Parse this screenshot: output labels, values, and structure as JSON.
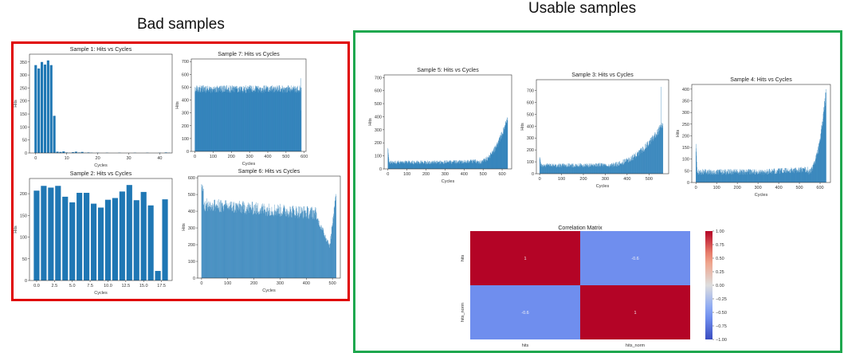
{
  "sections": {
    "bad": {
      "title": "Bad samples",
      "color": "#e00000"
    },
    "usable": {
      "title": "Usable samples",
      "color": "#1fa84f"
    }
  },
  "chart_data": [
    {
      "id": "sample1",
      "type": "bar",
      "title": "Sample 1: Hits vs Cycles",
      "xlabel": "Cycles",
      "ylabel": "Hits",
      "xlim": [
        -2,
        44
      ],
      "ylim": [
        0,
        380
      ],
      "xticks": [
        0,
        10,
        20,
        30,
        40
      ],
      "yticks": [
        0,
        50,
        100,
        150,
        200,
        250,
        300,
        350
      ],
      "bar_width": 0.8,
      "x": [
        0,
        1,
        2,
        3,
        4,
        5,
        6,
        7,
        8,
        9,
        10,
        11,
        12,
        13,
        14,
        15,
        16,
        17,
        18,
        19,
        20,
        21,
        22,
        23,
        24,
        25,
        26,
        27,
        28,
        29,
        30,
        31,
        32,
        33,
        34,
        35,
        36,
        37,
        38,
        39,
        40,
        41,
        42,
        43
      ],
      "values": [
        338,
        325,
        350,
        340,
        356,
        338,
        143,
        5,
        4,
        6,
        2,
        1,
        3,
        5,
        2,
        4,
        1,
        2,
        1,
        0,
        1,
        0,
        0,
        1,
        0,
        0,
        0,
        1,
        0,
        0,
        0,
        0,
        1,
        0,
        0,
        0,
        1,
        0,
        0,
        0,
        1,
        0,
        2,
        1
      ]
    },
    {
      "id": "sample7",
      "type": "bar",
      "title": "Sample 7: Hits vs Cycles",
      "xlabel": "Cycles",
      "ylabel": "Hits",
      "xlim": [
        -20,
        610
      ],
      "ylim": [
        0,
        720
      ],
      "xticks": [
        0,
        100,
        200,
        300,
        400,
        500,
        600
      ],
      "yticks": [
        0,
        100,
        200,
        300,
        400,
        500,
        600,
        700
      ],
      "generator": {
        "kind": "flat",
        "n": 585,
        "base": 485,
        "jitter": 60,
        "spikes": [
          [
            580,
            570
          ],
          [
            583,
            320
          ],
          [
            586,
            60
          ]
        ]
      }
    },
    {
      "id": "sample2",
      "type": "bar",
      "title": "Sample 2: Hits vs Cycles",
      "xlabel": "Cycles",
      "ylabel": "Hits",
      "xlim": [
        -1,
        19
      ],
      "ylim": [
        0,
        235
      ],
      "xticks": [
        0.0,
        2.5,
        5.0,
        7.5,
        10.0,
        12.5,
        15.0,
        17.5
      ],
      "yticks": [
        0,
        50,
        100,
        150,
        200
      ],
      "bar_width": 0.8,
      "x": [
        0,
        1,
        2,
        3,
        4,
        5,
        6,
        7,
        8,
        9,
        10,
        11,
        12,
        13,
        14,
        15,
        16,
        17,
        18
      ],
      "values": [
        207,
        218,
        214,
        218,
        193,
        180,
        202,
        202,
        177,
        168,
        186,
        190,
        205,
        220,
        185,
        204,
        173,
        22,
        187
      ]
    },
    {
      "id": "sample6",
      "type": "bar",
      "title": "Sample 6: Hits vs Cycles",
      "xlabel": "Cycles",
      "ylabel": "Hits",
      "xlim": [
        -15,
        530
      ],
      "ylim": [
        0,
        610
      ],
      "xticks": [
        0,
        100,
        200,
        300,
        400,
        500
      ],
      "yticks": [
        0,
        100,
        200,
        300,
        400,
        500,
        600
      ],
      "generator": {
        "kind": "decay_dip",
        "n": 515
      }
    },
    {
      "id": "sample5",
      "type": "bar",
      "title": "Sample 5: Hits vs Cycles",
      "xlabel": "Cycles",
      "ylabel": "Hits",
      "xlim": [
        -20,
        650
      ],
      "ylim": [
        0,
        720
      ],
      "xticks": [
        0,
        100,
        200,
        300,
        400,
        500,
        600
      ],
      "yticks": [
        0,
        100,
        200,
        300,
        400,
        500,
        600,
        700
      ],
      "generator": {
        "kind": "rise",
        "n": 630,
        "base": 50,
        "jitter": 30,
        "start": 470,
        "peak": 400,
        "first": 160
      }
    },
    {
      "id": "sample3",
      "type": "bar",
      "title": "Sample 3: Hits vs Cycles",
      "xlabel": "Cycles",
      "ylabel": "Hits",
      "xlim": [
        -15,
        590
      ],
      "ylim": [
        0,
        790
      ],
      "xticks": [
        0,
        100,
        200,
        300,
        400,
        500
      ],
      "yticks": [
        0,
        100,
        200,
        300,
        400,
        500,
        600,
        700
      ],
      "generator": {
        "kind": "rise",
        "n": 565,
        "base": 70,
        "jitter": 35,
        "start": 300,
        "peak": 420,
        "first": 140,
        "spike": [
          555,
          730
        ]
      }
    },
    {
      "id": "sample4",
      "type": "bar",
      "title": "Sample 4: Hits vs Cycles",
      "xlabel": "Cycles",
      "ylabel": "Hits",
      "xlim": [
        -20,
        650
      ],
      "ylim": [
        0,
        420
      ],
      "xticks": [
        0,
        100,
        200,
        300,
        400,
        500,
        600
      ],
      "yticks": [
        0,
        50,
        100,
        150,
        200,
        250,
        300,
        350,
        400
      ],
      "generator": {
        "kind": "rise",
        "n": 630,
        "base": 45,
        "jitter": 25,
        "start": 540,
        "peak": 400,
        "first": 165
      }
    },
    {
      "id": "correlation",
      "type": "heatmap",
      "title": "Correlation Matrix",
      "row_labels": [
        "hits",
        "hits_norm"
      ],
      "col_labels": [
        "hits",
        "hits_norm"
      ],
      "values": [
        [
          1,
          -0.6
        ],
        [
          -0.6,
          1
        ]
      ],
      "cell_text": [
        [
          "1",
          "-0.6"
        ],
        [
          "-0.6",
          "1"
        ]
      ],
      "vmin": -1,
      "vmax": 1,
      "colorbar_ticks": [
        1.0,
        0.75,
        0.5,
        0.25,
        0.0,
        -0.25,
        -0.5,
        -0.75,
        -1.0
      ],
      "colorbar_tick_labels": [
        "1.00",
        "0.75",
        "0.50",
        "0.25",
        "0.00",
        "−0.25",
        "−0.50",
        "−0.75",
        "−1.00"
      ]
    }
  ]
}
